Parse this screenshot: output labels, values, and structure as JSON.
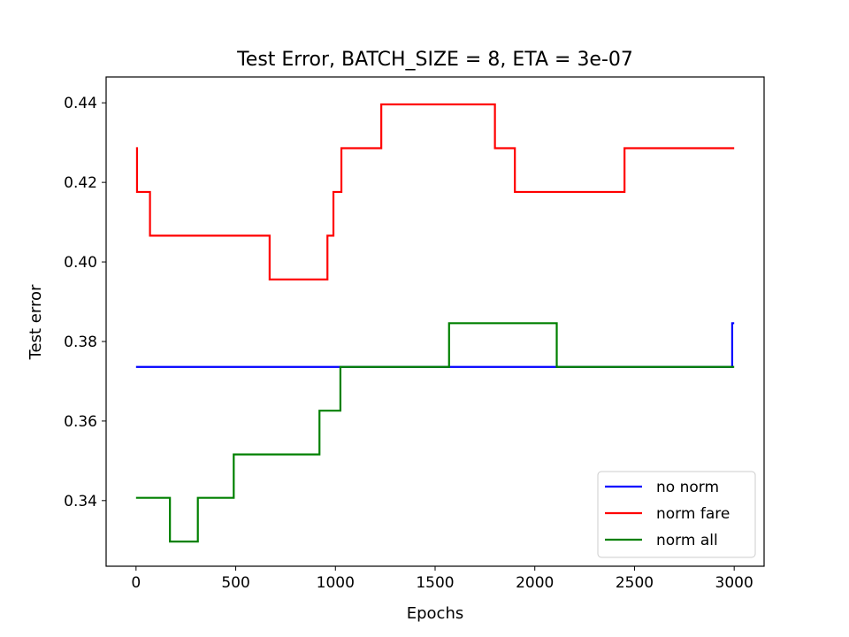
{
  "chart_data": {
    "type": "line",
    "title": "Test Error, BATCH_SIZE = 8, ETA = 3e-07",
    "xlabel": "Epochs",
    "ylabel": "Test error",
    "xlim": [
      -150,
      3150
    ],
    "ylim": [
      0.3235,
      0.4465
    ],
    "xticks": [
      0,
      500,
      1000,
      1500,
      2000,
      2500,
      3000
    ],
    "xtick_labels": [
      "0",
      "500",
      "1000",
      "1500",
      "2000",
      "2500",
      "3000"
    ],
    "yticks": [
      0.34,
      0.36,
      0.38,
      0.4,
      0.42,
      0.44
    ],
    "ytick_labels": [
      "0.34",
      "0.36",
      "0.38",
      "0.40",
      "0.42",
      "0.44"
    ],
    "grid": false,
    "legend_position": "lower right",
    "series": [
      {
        "name": "no norm",
        "color": "#0000ff",
        "step": "post",
        "x": [
          0,
          2990,
          3000
        ],
        "y": [
          0.3736,
          0.3846,
          0.3846
        ]
      },
      {
        "name": "norm fare",
        "color": "#ff0000",
        "step": "post",
        "x": [
          0,
          5,
          70,
          670,
          960,
          990,
          1030,
          1230,
          1800,
          1900,
          2450,
          3000
        ],
        "y": [
          0.4286,
          0.4176,
          0.4066,
          0.3956,
          0.4066,
          0.4176,
          0.4286,
          0.4396,
          0.4286,
          0.4176,
          0.4286,
          0.4286
        ]
      },
      {
        "name": "norm all",
        "color": "#008000",
        "step": "post",
        "x": [
          0,
          170,
          310,
          490,
          920,
          1025,
          1570,
          2110,
          3000
        ],
        "y": [
          0.3407,
          0.3297,
          0.3407,
          0.3516,
          0.3626,
          0.3736,
          0.3846,
          0.3736,
          0.3736
        ]
      }
    ]
  }
}
